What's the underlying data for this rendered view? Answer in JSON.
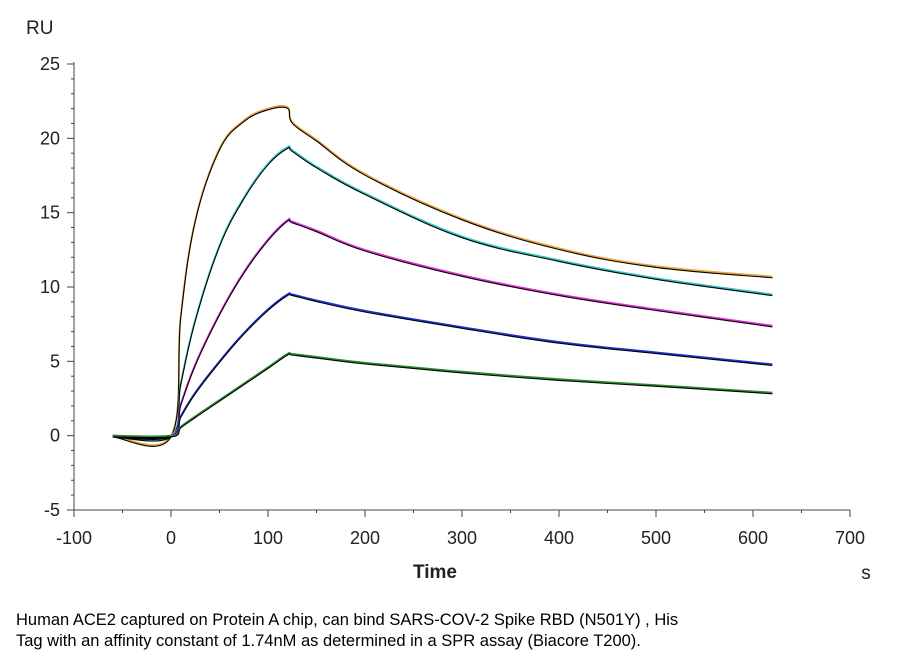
{
  "chart_data": {
    "type": "line",
    "ylabel": "RU",
    "xlabel": "Time",
    "x_unit": "s",
    "xlim": [
      -100,
      700
    ],
    "ylim": [
      -5,
      25
    ],
    "x_ticks": [
      -100,
      0,
      100,
      200,
      300,
      400,
      500,
      600,
      700
    ],
    "y_ticks": [
      -5,
      0,
      5,
      10,
      15,
      20,
      25
    ],
    "x_tick_labels": [
      "-100",
      "0",
      "100",
      "200",
      "300",
      "400",
      "500",
      "600",
      "700"
    ],
    "y_tick_labels": [
      "-5",
      "0",
      "5",
      "10",
      "15",
      "20",
      "25"
    ],
    "grid": false,
    "legend": "none",
    "series": [
      {
        "color": "#e8a33c",
        "fit_color": "#000000",
        "x": [
          -60,
          0,
          10,
          25,
          50,
          75,
          100,
          120,
          125,
          150,
          200,
          300,
          400,
          500,
          620
        ],
        "values": [
          0,
          0,
          8.0,
          14.5,
          19.3,
          21.2,
          22.0,
          22.1,
          21.1,
          19.9,
          17.6,
          14.6,
          12.6,
          11.4,
          10.7
        ]
      },
      {
        "color": "#2ec4c4",
        "fit_color": "#000000",
        "x": [
          -60,
          0,
          10,
          25,
          50,
          75,
          100,
          120,
          125,
          150,
          200,
          300,
          400,
          500,
          620
        ],
        "values": [
          0,
          0,
          3.5,
          7.8,
          12.8,
          16.0,
          18.3,
          19.4,
          19.2,
          18.1,
          16.3,
          13.4,
          11.8,
          10.6,
          9.5
        ]
      },
      {
        "color": "#e030d8",
        "fit_color": "#000000",
        "x": [
          -60,
          0,
          10,
          25,
          50,
          75,
          100,
          120,
          125,
          150,
          200,
          300,
          400,
          500,
          620
        ],
        "values": [
          0,
          0,
          2.1,
          4.8,
          8.2,
          11.0,
          13.2,
          14.5,
          14.4,
          13.8,
          12.5,
          10.8,
          9.5,
          8.5,
          7.4
        ]
      },
      {
        "color": "#2030d0",
        "fit_color": "#000000",
        "x": [
          -60,
          0,
          10,
          25,
          50,
          75,
          100,
          120,
          125,
          150,
          200,
          300,
          400,
          500,
          620
        ],
        "values": [
          0,
          0,
          1.3,
          2.9,
          5.0,
          6.9,
          8.5,
          9.5,
          9.5,
          9.1,
          8.4,
          7.3,
          6.3,
          5.6,
          4.8
        ]
      },
      {
        "color": "#2a8a2a",
        "fit_color": "#000000",
        "x": [
          -60,
          0,
          10,
          25,
          50,
          75,
          100,
          120,
          125,
          150,
          200,
          300,
          400,
          500,
          620
        ],
        "values": [
          0,
          0,
          0.6,
          1.3,
          2.4,
          3.5,
          4.6,
          5.5,
          5.5,
          5.3,
          4.9,
          4.3,
          3.8,
          3.4,
          2.9
        ]
      }
    ]
  },
  "caption": {
    "line1": "Human ACE2 captured on Protein A chip, can bind SARS-COV-2 Spike RBD (N501Y) , His",
    "line2": "Tag with an affinity constant of 1.74nM as determined in a SPR assay (Biacore T200)."
  }
}
